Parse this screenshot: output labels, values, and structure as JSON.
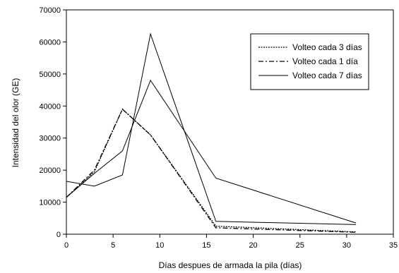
{
  "chart_data": {
    "type": "line",
    "title": "",
    "xlabel": "Días despues de armada la pila (días)",
    "ylabel": "Intensidad del olor (GE)",
    "xlim": [
      0,
      35
    ],
    "ylim": [
      0,
      70000
    ],
    "xticks": [
      0,
      5,
      10,
      15,
      20,
      25,
      30,
      35
    ],
    "yticks": [
      0,
      10000,
      20000,
      30000,
      40000,
      50000,
      60000,
      70000
    ],
    "grid": false,
    "legend_position": "top-right",
    "series": [
      {
        "name": "Volteo cada 3 días",
        "line_style": "dotted",
        "x": [
          0,
          3,
          6,
          9,
          16,
          31
        ],
        "y": [
          11500,
          19500,
          39000,
          31000,
          2500,
          700
        ]
      },
      {
        "name": "Volteo cada 1 día",
        "line_style": "dash-dot",
        "x": [
          0,
          3,
          6,
          9,
          16,
          31
        ],
        "y": [
          11500,
          20000,
          39000,
          31000,
          2000,
          600
        ]
      },
      {
        "name": "Volteo cada 7 días",
        "line_style": "solid",
        "x": [
          0,
          3,
          6,
          9,
          16,
          31
        ],
        "y": [
          16500,
          15000,
          18500,
          62500,
          4000,
          3000
        ]
      },
      {
        "name": "",
        "line_style": "solid",
        "x": [
          0,
          3,
          6,
          9,
          16,
          31
        ],
        "y": [
          11500,
          19000,
          26000,
          48000,
          17500,
          3500
        ]
      }
    ]
  }
}
